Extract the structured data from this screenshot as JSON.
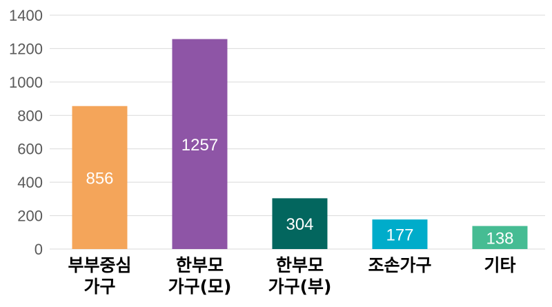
{
  "chart_data": {
    "type": "bar",
    "title": "",
    "xlabel": "",
    "ylabel": "",
    "ylim": [
      0,
      1400
    ],
    "yticks": [
      0,
      200,
      400,
      600,
      800,
      1000,
      1200,
      1400
    ],
    "grid": true,
    "legend": "none",
    "categories": [
      [
        "부부중심",
        "가구"
      ],
      [
        "한부모",
        "가구(모)"
      ],
      [
        "한부모",
        "가구(부)"
      ],
      [
        "조손가구"
      ],
      [
        "기타"
      ]
    ],
    "values": [
      856,
      1257,
      304,
      177,
      138
    ],
    "colors": [
      "#F4A55A",
      "#8E55A6",
      "#03665E",
      "#00ACCA",
      "#46BC93"
    ],
    "data_label_color": "#ffffff"
  }
}
